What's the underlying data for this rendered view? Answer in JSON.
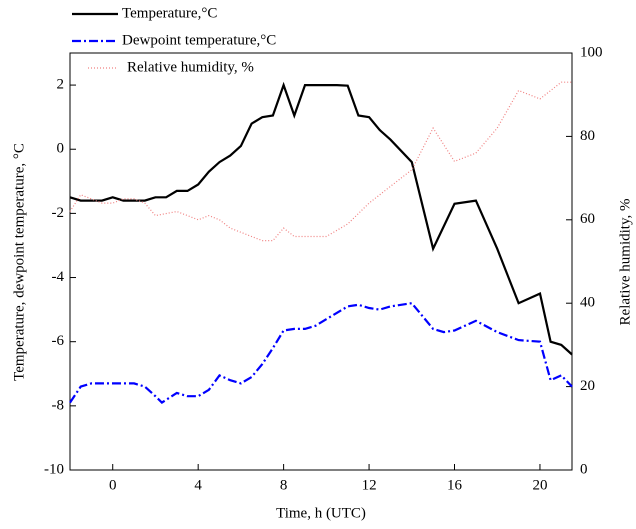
{
  "chart_data": {
    "type": "line",
    "xlabel": "Time, h (UTC)",
    "ylabel": "Temperature, dewpoint temperature, °C",
    "y2label": "Relative humidity, %",
    "xlim": [
      -2,
      21.5
    ],
    "xticks": [
      0,
      4,
      8,
      12,
      16,
      20
    ],
    "ylim": [
      -10,
      3
    ],
    "yticks": [
      -10,
      -8,
      -6,
      -4,
      -2,
      0,
      2
    ],
    "y2lim": [
      0,
      100
    ],
    "y2ticks": [
      0,
      20,
      40,
      60,
      80,
      100
    ],
    "series": [
      {
        "name": "Temperature,°C",
        "color": "#000000",
        "style": "solid",
        "x": [
          -2,
          -1.5,
          -1,
          -0.5,
          0,
          0.5,
          1,
          1.5,
          2,
          2.5,
          3,
          3.5,
          4,
          4.5,
          5,
          5.5,
          6,
          6.5,
          7,
          7.5,
          8,
          8.5,
          9,
          10,
          10.5,
          11,
          11.5,
          12,
          12.5,
          13,
          14,
          15,
          16,
          17,
          18,
          19,
          20,
          20.5,
          21,
          21.5
        ],
        "values": [
          -1.5,
          -1.6,
          -1.6,
          -1.6,
          -1.5,
          -1.6,
          -1.6,
          -1.6,
          -1.5,
          -1.5,
          -1.3,
          -1.3,
          -1.1,
          -0.7,
          -0.4,
          -0.2,
          0.1,
          0.8,
          1.0,
          1.05,
          2.0,
          1.05,
          2.0,
          2.0,
          2.0,
          1.98,
          1.05,
          1.0,
          0.6,
          0.3,
          -0.4,
          -3.1,
          -1.7,
          -1.6,
          -3.1,
          -4.8,
          -4.5,
          -6.0,
          -6.1,
          -6.4
        ]
      },
      {
        "name": "Dewpoint temperature,°C",
        "color": "#0000ff",
        "style": "dashdot",
        "x": [
          -2,
          -1.5,
          -1,
          0,
          0.5,
          1,
          1.5,
          2,
          2.3,
          3,
          3.5,
          4,
          4.5,
          5,
          5.5,
          6,
          6.5,
          7,
          7.5,
          8,
          8.5,
          9,
          9.5,
          10,
          10.5,
          11,
          11.5,
          12,
          12.5,
          13,
          14,
          15,
          15.5,
          16,
          17,
          18,
          19,
          20,
          20.5,
          21,
          21.5
        ],
        "values": [
          -7.9,
          -7.4,
          -7.3,
          -7.3,
          -7.3,
          -7.3,
          -7.4,
          -7.7,
          -7.9,
          -7.6,
          -7.7,
          -7.7,
          -7.5,
          -7.05,
          -7.2,
          -7.3,
          -7.1,
          -6.7,
          -6.2,
          -5.65,
          -5.6,
          -5.6,
          -5.5,
          -5.3,
          -5.1,
          -4.9,
          -4.85,
          -4.95,
          -5.0,
          -4.9,
          -4.8,
          -5.6,
          -5.7,
          -5.65,
          -5.35,
          -5.7,
          -5.95,
          -6.0,
          -7.2,
          -7.05,
          -7.4
        ]
      },
      {
        "name": "Relative humidity, %",
        "color": "#f08080",
        "style": "dotted",
        "axis": "y2",
        "x": [
          -2,
          -1.5,
          -1,
          -0.5,
          0,
          0.5,
          1,
          1.5,
          2,
          3,
          3.5,
          4,
          4.5,
          5,
          5.5,
          6,
          6.5,
          7,
          7.5,
          8,
          8.5,
          9,
          10,
          11,
          12,
          13,
          14,
          15,
          16,
          17,
          18,
          19,
          20,
          21,
          21.5
        ],
        "values": [
          62,
          66,
          65,
          64,
          64,
          65,
          65,
          64,
          61,
          62,
          61,
          60,
          61,
          60,
          58,
          57,
          56,
          55,
          55,
          58,
          56,
          56,
          56,
          59,
          64,
          68,
          72,
          82,
          74,
          76,
          82,
          91,
          89,
          93,
          93
        ]
      }
    ]
  }
}
